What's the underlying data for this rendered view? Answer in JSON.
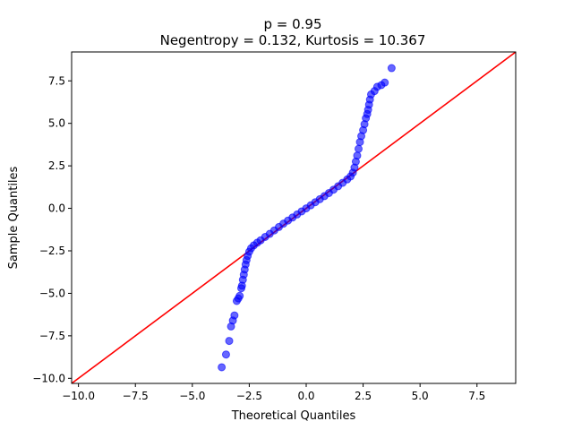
{
  "chart_data": {
    "type": "scatter",
    "title_line1": "p = 0.95",
    "title_line2": "Negentropy = 0.132, Kurtosis = 10.367",
    "xlabel": "Theoretical Quantiles",
    "ylabel": "Sample Quantiles",
    "xlim": [
      -10.3,
      9.2
    ],
    "ylim": [
      -10.3,
      9.2
    ],
    "xticks": [
      -10.0,
      -7.5,
      -5.0,
      -2.5,
      0.0,
      2.5,
      5.0,
      7.5
    ],
    "yticks": [
      -10.0,
      -7.5,
      -5.0,
      -2.5,
      0.0,
      2.5,
      5.0,
      7.5
    ],
    "tick_labels_x": [
      "−10.0",
      "−7.5",
      "−5.0",
      "−2.5",
      "0.0",
      "2.5",
      "5.0",
      "7.5"
    ],
    "tick_labels_y": [
      "−10.0",
      "−7.5",
      "−5.0",
      "−2.5",
      "0.0",
      "2.5",
      "5.0",
      "7.5"
    ],
    "grid": false,
    "marker_color": "#0000ff",
    "line_color": "#ff0000",
    "reference_line": {
      "slope": 1,
      "intercept": 0
    },
    "points": [
      [
        -3.71,
        -9.35
      ],
      [
        -3.52,
        -8.6
      ],
      [
        -3.38,
        -7.8
      ],
      [
        -3.3,
        -6.95
      ],
      [
        -3.22,
        -6.6
      ],
      [
        -3.15,
        -6.3
      ],
      [
        -3.05,
        -5.45
      ],
      [
        -2.98,
        -5.3
      ],
      [
        -2.92,
        -5.15
      ],
      [
        -2.85,
        -4.7
      ],
      [
        -2.82,
        -4.55
      ],
      [
        -2.78,
        -4.2
      ],
      [
        -2.74,
        -3.9
      ],
      [
        -2.7,
        -3.6
      ],
      [
        -2.66,
        -3.3
      ],
      [
        -2.62,
        -3.05
      ],
      [
        -2.57,
        -2.8
      ],
      [
        -2.5,
        -2.55
      ],
      [
        -2.42,
        -2.35
      ],
      [
        -2.3,
        -2.18
      ],
      [
        -2.15,
        -2.02
      ],
      [
        -2.0,
        -1.88
      ],
      [
        -1.8,
        -1.68
      ],
      [
        -1.6,
        -1.5
      ],
      [
        -1.4,
        -1.3
      ],
      [
        -1.2,
        -1.1
      ],
      [
        -1.0,
        -0.9
      ],
      [
        -0.8,
        -0.72
      ],
      [
        -0.6,
        -0.54
      ],
      [
        -0.4,
        -0.36
      ],
      [
        -0.2,
        -0.18
      ],
      [
        0.0,
        0.0
      ],
      [
        0.2,
        0.18
      ],
      [
        0.4,
        0.36
      ],
      [
        0.6,
        0.54
      ],
      [
        0.8,
        0.72
      ],
      [
        1.0,
        0.9
      ],
      [
        1.2,
        1.1
      ],
      [
        1.4,
        1.3
      ],
      [
        1.6,
        1.5
      ],
      [
        1.8,
        1.7
      ],
      [
        1.95,
        1.88
      ],
      [
        2.05,
        2.1
      ],
      [
        2.12,
        2.4
      ],
      [
        2.18,
        2.75
      ],
      [
        2.24,
        3.1
      ],
      [
        2.3,
        3.5
      ],
      [
        2.36,
        3.9
      ],
      [
        2.42,
        4.25
      ],
      [
        2.5,
        4.6
      ],
      [
        2.56,
        4.95
      ],
      [
        2.62,
        5.3
      ],
      [
        2.68,
        5.55
      ],
      [
        2.72,
        5.8
      ],
      [
        2.76,
        6.1
      ],
      [
        2.8,
        6.4
      ],
      [
        2.85,
        6.7
      ],
      [
        3.0,
        6.9
      ],
      [
        3.12,
        7.15
      ],
      [
        3.3,
        7.25
      ],
      [
        3.45,
        7.4
      ],
      [
        3.75,
        8.25
      ]
    ]
  }
}
